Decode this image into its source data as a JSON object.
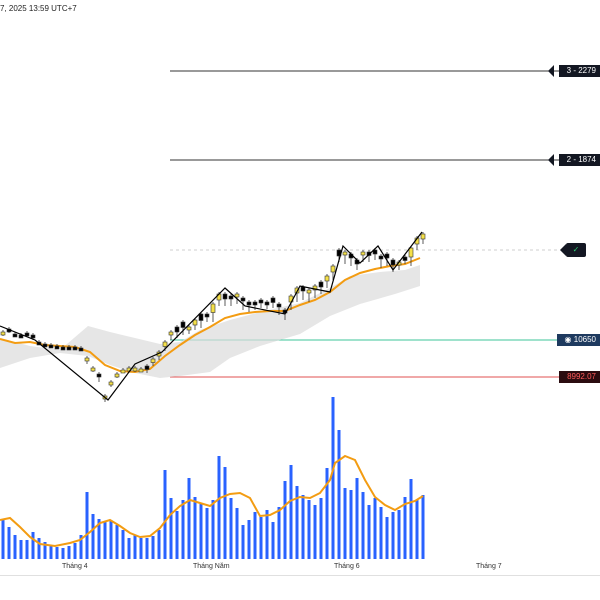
{
  "header": {
    "datetime": "7, 2025 13:59 UTC+7"
  },
  "levels": [
    {
      "label": "3 - 2279"
    },
    {
      "label": "2 - 1874"
    }
  ],
  "check_tag": {
    "label": "✓"
  },
  "price_tags": {
    "blue": {
      "icon": "eye-icon",
      "label": "◉ 10650"
    },
    "red": {
      "label": "8992.07"
    }
  },
  "x_axis": {
    "months": [
      "Tháng 4",
      "Tháng Năm",
      "Tháng 6",
      "Tháng 7"
    ]
  },
  "colors": {
    "up_candle": "#f5e04a",
    "down_candle": "#000000",
    "ma_line": "#f39c12",
    "volume_bar": "#2962ff",
    "band_fill": "#dcdcdc",
    "green_line": "#3cc49a",
    "red_line": "#e05252"
  },
  "chart_data": {
    "type": "candlestick",
    "candles": [
      [
        3,
        336,
        330,
        334,
        1
      ],
      [
        9,
        333,
        327,
        331,
        0
      ],
      [
        15,
        336,
        332,
        335,
        0
      ],
      [
        21,
        338,
        333,
        336,
        0
      ],
      [
        27,
        336,
        331,
        334,
        0
      ],
      [
        33,
        340,
        333,
        337,
        0
      ],
      [
        39,
        345,
        340,
        344,
        0
      ],
      [
        45,
        347,
        342,
        346,
        0
      ],
      [
        51,
        348,
        343,
        347,
        0
      ],
      [
        57,
        349,
        344,
        348,
        0
      ],
      [
        63,
        349,
        345,
        348,
        0
      ],
      [
        69,
        349,
        345,
        348,
        0
      ],
      [
        75,
        348,
        345,
        347,
        0
      ],
      [
        81,
        351,
        346,
        350,
        0
      ],
      [
        87,
        364,
        356,
        358,
        1
      ],
      [
        93,
        372,
        366,
        370,
        1
      ],
      [
        99,
        382,
        372,
        380,
        0
      ],
      [
        105,
        402,
        394,
        401,
        1
      ],
      [
        111,
        387,
        380,
        382,
        1
      ],
      [
        117,
        378,
        372,
        374,
        1
      ],
      [
        123,
        372,
        368,
        370,
        1
      ],
      [
        129,
        371,
        366,
        368,
        1
      ],
      [
        135,
        372,
        366,
        370,
        1
      ],
      [
        141,
        372,
        367,
        369,
        1
      ],
      [
        147,
        373,
        364,
        366,
        0
      ],
      [
        153,
        366,
        357,
        359,
        1
      ],
      [
        159,
        360,
        350,
        352,
        1
      ],
      [
        165,
        351,
        340,
        342,
        1
      ],
      [
        171,
        340,
        330,
        334,
        1
      ],
      [
        177,
        338,
        325,
        328,
        0
      ],
      [
        183,
        335,
        320,
        324,
        0
      ],
      [
        189,
        334,
        325,
        330,
        1
      ],
      [
        195,
        330,
        318,
        320,
        1
      ],
      [
        201,
        328,
        312,
        315,
        0
      ],
      [
        207,
        322,
        312,
        318,
        0
      ],
      [
        213,
        322,
        302,
        305,
        1
      ],
      [
        219,
        306,
        292,
        294,
        1
      ],
      [
        225,
        306,
        292,
        296,
        0
      ],
      [
        231,
        306,
        294,
        303,
        0
      ],
      [
        237,
        304,
        292,
        298,
        1
      ],
      [
        243,
        310,
        296,
        306,
        0
      ],
      [
        249,
        312,
        300,
        308,
        0
      ],
      [
        255,
        310,
        300,
        305,
        0
      ],
      [
        261,
        308,
        298,
        302,
        0
      ],
      [
        267,
        309,
        300,
        306,
        0
      ],
      [
        273,
        308,
        296,
        299,
        0
      ],
      [
        279,
        315,
        302,
        311,
        0
      ],
      [
        285,
        320,
        308,
        316,
        0
      ],
      [
        291,
        310,
        294,
        298,
        1
      ],
      [
        297,
        302,
        286,
        292,
        1
      ],
      [
        303,
        300,
        285,
        292,
        0
      ],
      [
        309,
        302,
        288,
        298,
        1
      ],
      [
        315,
        298,
        284,
        290,
        1
      ],
      [
        321,
        294,
        280,
        284,
        0
      ],
      [
        327,
        288,
        274,
        278,
        1
      ],
      [
        333,
        280,
        264,
        268,
        1
      ],
      [
        339,
        262,
        248,
        250,
        0
      ],
      [
        345,
        264,
        250,
        262,
        1
      ],
      [
        351,
        266,
        252,
        258,
        0
      ],
      [
        357,
        270,
        258,
        262,
        0
      ],
      [
        363,
        262,
        250,
        256,
        1
      ],
      [
        369,
        262,
        250,
        255,
        0
      ],
      [
        375,
        260,
        248,
        252,
        0
      ],
      [
        381,
        268,
        254,
        264,
        0
      ],
      [
        387,
        266,
        252,
        258,
        0
      ],
      [
        393,
        272,
        258,
        262,
        0
      ],
      [
        399,
        270,
        260,
        266,
        1
      ],
      [
        405,
        264,
        255,
        257,
        0
      ],
      [
        411,
        266,
        246,
        248,
        1
      ],
      [
        417,
        250,
        236,
        238,
        1
      ],
      [
        423,
        244,
        232,
        234,
        1
      ]
    ],
    "volume": [
      [
        3,
        520
      ],
      [
        9,
        527
      ],
      [
        15,
        535
      ],
      [
        21,
        540
      ],
      [
        27,
        540
      ],
      [
        33,
        532
      ],
      [
        39,
        538
      ],
      [
        45,
        542
      ],
      [
        51,
        546
      ],
      [
        57,
        547
      ],
      [
        63,
        548
      ],
      [
        69,
        546
      ],
      [
        75,
        543
      ],
      [
        81,
        535
      ],
      [
        87,
        492
      ],
      [
        93,
        514
      ],
      [
        99,
        519
      ],
      [
        105,
        521
      ],
      [
        111,
        521
      ],
      [
        117,
        525
      ],
      [
        123,
        530
      ],
      [
        129,
        538
      ],
      [
        135,
        535
      ],
      [
        141,
        538
      ],
      [
        147,
        538
      ],
      [
        153,
        536
      ],
      [
        159,
        530
      ],
      [
        165,
        470
      ],
      [
        171,
        498
      ],
      [
        177,
        511
      ],
      [
        183,
        500
      ],
      [
        189,
        478
      ],
      [
        195,
        497
      ],
      [
        201,
        503
      ],
      [
        207,
        508
      ],
      [
        213,
        500
      ],
      [
        219,
        456
      ],
      [
        225,
        467
      ],
      [
        231,
        498
      ],
      [
        237,
        508
      ],
      [
        243,
        525
      ],
      [
        249,
        520
      ],
      [
        255,
        512
      ],
      [
        261,
        517
      ],
      [
        267,
        510
      ],
      [
        273,
        522
      ],
      [
        279,
        507
      ],
      [
        285,
        481
      ],
      [
        291,
        465
      ],
      [
        297,
        486
      ],
      [
        303,
        495
      ],
      [
        309,
        500
      ],
      [
        315,
        505
      ],
      [
        321,
        498
      ],
      [
        327,
        468
      ],
      [
        333,
        397
      ],
      [
        339,
        430
      ],
      [
        345,
        488
      ],
      [
        351,
        490
      ],
      [
        357,
        478
      ],
      [
        363,
        492
      ],
      [
        369,
        505
      ],
      [
        375,
        498
      ],
      [
        381,
        507
      ],
      [
        387,
        517
      ],
      [
        393,
        512
      ],
      [
        399,
        510
      ],
      [
        405,
        497
      ],
      [
        411,
        479
      ],
      [
        417,
        500
      ],
      [
        423,
        495
      ]
    ],
    "volume_ma": [
      [
        0,
        520
      ],
      [
        10,
        518
      ],
      [
        20,
        527
      ],
      [
        30,
        537
      ],
      [
        40,
        544
      ],
      [
        55,
        546
      ],
      [
        70,
        543
      ],
      [
        80,
        540
      ],
      [
        90,
        532
      ],
      [
        100,
        523
      ],
      [
        110,
        520
      ],
      [
        120,
        526
      ],
      [
        130,
        533
      ],
      [
        140,
        537
      ],
      [
        150,
        536
      ],
      [
        160,
        528
      ],
      [
        170,
        515
      ],
      [
        180,
        506
      ],
      [
        190,
        500
      ],
      [
        200,
        503
      ],
      [
        210,
        506
      ],
      [
        220,
        498
      ],
      [
        230,
        494
      ],
      [
        240,
        493
      ],
      [
        250,
        498
      ],
      [
        260,
        516
      ],
      [
        270,
        515
      ],
      [
        280,
        510
      ],
      [
        290,
        501
      ],
      [
        300,
        497
      ],
      [
        310,
        498
      ],
      [
        320,
        493
      ],
      [
        330,
        480
      ],
      [
        335,
        463
      ],
      [
        345,
        456
      ],
      [
        355,
        460
      ],
      [
        365,
        480
      ],
      [
        375,
        497
      ],
      [
        385,
        505
      ],
      [
        395,
        510
      ],
      [
        405,
        504
      ],
      [
        415,
        501
      ],
      [
        423,
        496
      ]
    ],
    "ma_line": [
      [
        0,
        339
      ],
      [
        15,
        343
      ],
      [
        30,
        342
      ],
      [
        45,
        345
      ],
      [
        60,
        346
      ],
      [
        75,
        347
      ],
      [
        90,
        352
      ],
      [
        105,
        365
      ],
      [
        120,
        371
      ],
      [
        135,
        372
      ],
      [
        150,
        369
      ],
      [
        165,
        356
      ],
      [
        180,
        345
      ],
      [
        195,
        335
      ],
      [
        210,
        327
      ],
      [
        225,
        318
      ],
      [
        240,
        314
      ],
      [
        255,
        312
      ],
      [
        270,
        311
      ],
      [
        285,
        311
      ],
      [
        300,
        305
      ],
      [
        315,
        300
      ],
      [
        330,
        292
      ],
      [
        345,
        280
      ],
      [
        360,
        273
      ],
      [
        375,
        269
      ],
      [
        390,
        266
      ],
      [
        405,
        264
      ],
      [
        420,
        258
      ]
    ],
    "zigzag": [
      [
        0,
        326
      ],
      [
        35,
        340
      ],
      [
        108,
        400
      ],
      [
        135,
        364
      ],
      [
        162,
        352
      ],
      [
        225,
        288
      ],
      [
        245,
        306
      ],
      [
        285,
        314
      ],
      [
        300,
        286
      ],
      [
        330,
        292
      ],
      [
        343,
        246
      ],
      [
        360,
        263
      ],
      [
        378,
        246
      ],
      [
        393,
        270
      ],
      [
        422,
        232
      ]
    ],
    "band_upper": [
      [
        0,
        338
      ],
      [
        30,
        346
      ],
      [
        60,
        350
      ],
      [
        88,
        326
      ],
      [
        110,
        332
      ],
      [
        135,
        338
      ],
      [
        160,
        344
      ],
      [
        180,
        342
      ],
      [
        200,
        330
      ],
      [
        230,
        320
      ],
      [
        260,
        312
      ],
      [
        300,
        303
      ],
      [
        330,
        288
      ],
      [
        350,
        276
      ],
      [
        380,
        272
      ],
      [
        405,
        270
      ],
      [
        420,
        265
      ]
    ],
    "band_lower": [
      [
        0,
        368
      ],
      [
        30,
        358
      ],
      [
        60,
        353
      ],
      [
        88,
        356
      ],
      [
        110,
        365
      ],
      [
        135,
        373
      ],
      [
        160,
        378
      ],
      [
        180,
        376
      ],
      [
        210,
        372
      ],
      [
        230,
        358
      ],
      [
        260,
        346
      ],
      [
        300,
        334
      ],
      [
        330,
        316
      ],
      [
        360,
        304
      ],
      [
        395,
        294
      ],
      [
        420,
        286
      ]
    ],
    "levels_y": [
      71,
      160
    ],
    "dashed_y": 250,
    "green_y": 340,
    "red_y": 377
  }
}
